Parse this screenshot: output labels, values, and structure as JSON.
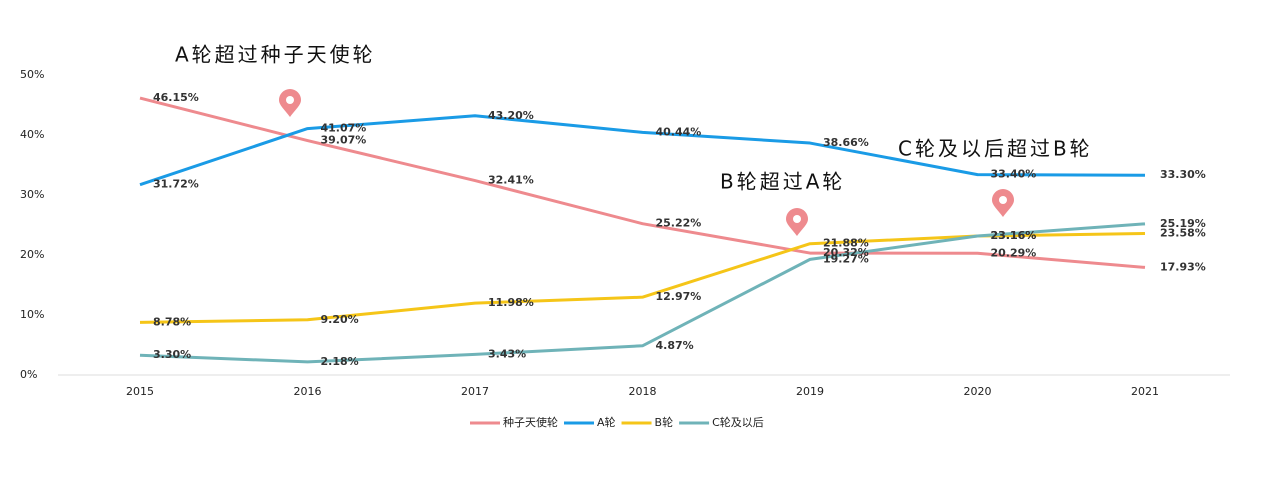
{
  "chart_data": {
    "type": "line",
    "categories": [
      "2015",
      "2016",
      "2017",
      "2018",
      "2019",
      "2020",
      "2021"
    ],
    "ylim": [
      0,
      50
    ],
    "yticks": [
      {
        "value": 0,
        "label": "0%"
      },
      {
        "value": 10,
        "label": "10%"
      },
      {
        "value": 20,
        "label": "20%"
      },
      {
        "value": 30,
        "label": "30%"
      },
      {
        "value": 40,
        "label": "40%"
      },
      {
        "value": 50,
        "label": "50%"
      }
    ],
    "annotations": [
      "A轮超过种子天使轮",
      "B轮超过A轮",
      "C轮及以后超过B轮"
    ],
    "series": [
      {
        "name": "种子天使轮",
        "color": "#ee8a8e",
        "values": [
          46.15,
          39.07,
          32.41,
          25.22,
          20.32,
          20.29,
          17.93
        ],
        "value_labels": [
          "46.15%",
          "39.07%",
          "32.41%",
          "25.22%",
          "20.32%",
          "20.29%",
          "17.93%"
        ]
      },
      {
        "name": "A轮",
        "color": "#1a9be6",
        "values": [
          31.72,
          41.07,
          43.2,
          40.44,
          38.66,
          33.4,
          33.3
        ],
        "value_labels": [
          "31.72%",
          "41.07%",
          "43.20%",
          "40.44%",
          "38.66%",
          "33.40%",
          "33.30%"
        ]
      },
      {
        "name": "B轮",
        "color": "#f5c518",
        "values": [
          8.78,
          9.2,
          11.98,
          12.97,
          21.88,
          23.16,
          23.58
        ],
        "value_labels": [
          "8.78%",
          "9.20%",
          "11.98%",
          "12.97%",
          "21.88%",
          "23.16%",
          "23.58%"
        ]
      },
      {
        "name": "C轮及以后",
        "color": "#6fb3b8",
        "values": [
          3.3,
          2.18,
          3.43,
          4.87,
          19.27,
          23.16,
          25.19
        ],
        "value_labels": [
          "3.30%",
          "2.18%",
          "3.43%",
          "4.87%",
          "19.27%",
          "23.16%",
          "25.19%"
        ]
      }
    ]
  }
}
